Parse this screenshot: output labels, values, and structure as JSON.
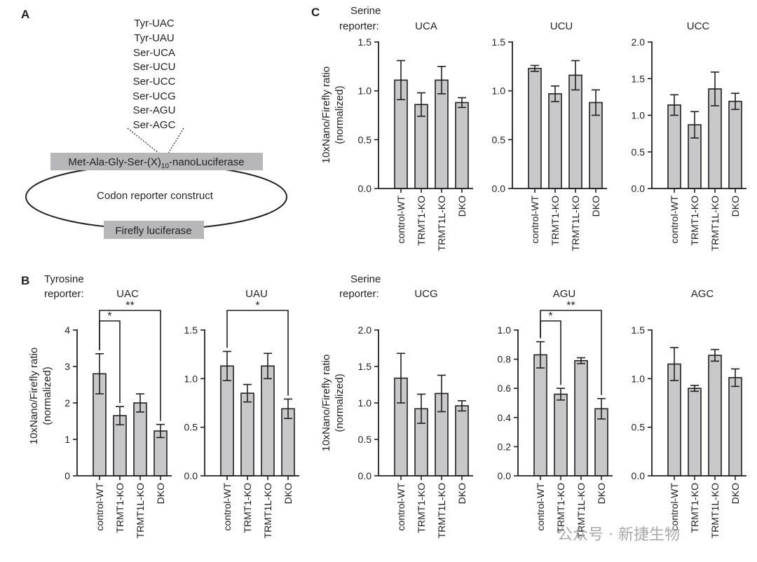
{
  "panel_a": {
    "letter": "A",
    "codons": [
      "Tyr-UAC",
      "Tyr-UAU",
      "Ser-UCA",
      "Ser-UCU",
      "Ser-UCC",
      "Ser-UCG",
      "Ser-AGU",
      "Ser-AGC"
    ],
    "construct_prefix": "Met-Ala-Gly-Ser-(X)",
    "construct_sub": "10",
    "construct_suffix": "-nanoLuciferase",
    "plasmid_label": "Codon reporter construct",
    "firefly_label": "Firefly luciferase"
  },
  "panel_b": {
    "letter": "B",
    "reporter_line1": "Tyrosine",
    "reporter_line2": "reporter:"
  },
  "panel_c": {
    "letter": "C",
    "reporter_line1": "Serine",
    "reporter_line2": "reporter:",
    "reporter_line1_b": "Serine",
    "reporter_line2_b": "reporter:"
  },
  "ylabel_line1": "10xNano/Firefly ratio",
  "ylabel_line2": "(normalized)",
  "watermark": "公众号 · 新捷生物",
  "colors": {
    "bar_fill": "#c8c8ca",
    "ink": "#231f20",
    "watermark": "#9a9a9a"
  },
  "chart_data": [
    {
      "type": "bar",
      "title": "UAC",
      "categories": [
        "control-WT",
        "TRMT1-KO",
        "TRMT1L-KO",
        "DKO"
      ],
      "values": [
        2.8,
        1.65,
        2.0,
        1.23
      ],
      "errors": [
        0.55,
        0.25,
        0.25,
        0.18
      ],
      "ylim": [
        0,
        4
      ],
      "yticks": [
        0,
        1,
        2,
        3,
        4
      ],
      "ytick_labels": [
        "0",
        "1",
        "2",
        "3",
        "4"
      ],
      "ylabel": "10xNano/Firefly ratio (normalized)",
      "brackets": [
        {
          "from": 0,
          "to": 1,
          "label": "*",
          "level": 1
        },
        {
          "from": 0,
          "to": 3,
          "label": "**",
          "level": 2
        }
      ]
    },
    {
      "type": "bar",
      "title": "UAU",
      "categories": [
        "control-WT",
        "TRMT1-KO",
        "TRMT1L-KO",
        "DKO"
      ],
      "values": [
        1.13,
        0.85,
        1.13,
        0.69
      ],
      "errors": [
        0.15,
        0.09,
        0.13,
        0.1
      ],
      "ylim": [
        0,
        1.5
      ],
      "yticks": [
        0,
        0.5,
        1.0,
        1.5
      ],
      "ytick_labels": [
        "0.0",
        "0.5",
        "1.0",
        "1.5"
      ],
      "ylabel": "",
      "brackets": [
        {
          "from": 0,
          "to": 3,
          "label": "*",
          "level": 2
        }
      ]
    },
    {
      "type": "bar",
      "title": "UCA",
      "categories": [
        "control-WT",
        "TRMT1-KO",
        "TRMT1L-KO",
        "DKO"
      ],
      "values": [
        1.11,
        0.86,
        1.11,
        0.88
      ],
      "errors": [
        0.2,
        0.12,
        0.14,
        0.05
      ],
      "ylim": [
        0,
        1.5
      ],
      "yticks": [
        0,
        0.5,
        1.0,
        1.5
      ],
      "ytick_labels": [
        "0.0",
        "0.5",
        "1.0",
        "1.5"
      ],
      "ylabel": "10xNano/Firefly ratio (normalized)",
      "brackets": []
    },
    {
      "type": "bar",
      "title": "UCU",
      "categories": [
        "control-WT",
        "TRMT1-KO",
        "TRMT1L-KO",
        "DKO"
      ],
      "values": [
        1.23,
        0.97,
        1.16,
        0.88
      ],
      "errors": [
        0.03,
        0.08,
        0.15,
        0.13
      ],
      "ylim": [
        0,
        1.5
      ],
      "yticks": [
        0,
        0.5,
        1.0,
        1.5
      ],
      "ytick_labels": [
        "0.0",
        "0.5",
        "1.0",
        "1.5"
      ],
      "ylabel": "",
      "brackets": []
    },
    {
      "type": "bar",
      "title": "UCC",
      "categories": [
        "control-WT",
        "TRMT1-KO",
        "TRMT1L-KO",
        "DKO"
      ],
      "values": [
        1.14,
        0.87,
        1.36,
        1.19
      ],
      "errors": [
        0.14,
        0.18,
        0.23,
        0.11
      ],
      "ylim": [
        0,
        2.0
      ],
      "yticks": [
        0,
        0.5,
        1.0,
        1.5,
        2.0
      ],
      "ytick_labels": [
        "0.0",
        "0.5",
        "1.0",
        "1.5",
        "2.0"
      ],
      "ylabel": "",
      "brackets": []
    },
    {
      "type": "bar",
      "title": "UCG",
      "categories": [
        "control-WT",
        "TRMT1-KO",
        "TRMT1L-KO",
        "DKO"
      ],
      "values": [
        1.34,
        0.92,
        1.13,
        0.96
      ],
      "errors": [
        0.34,
        0.2,
        0.25,
        0.07
      ],
      "ylim": [
        0,
        2.0
      ],
      "yticks": [
        0,
        0.5,
        1.0,
        1.5,
        2.0
      ],
      "ytick_labels": [
        "0.0",
        "0.5",
        "1.0",
        "1.5",
        "2.0"
      ],
      "ylabel": "10xNano/Firefly ratio (normalized)",
      "brackets": []
    },
    {
      "type": "bar",
      "title": "AGU",
      "categories": [
        "control-WT",
        "TRMT1-KO",
        "TRMT1L-KO",
        "DKO"
      ],
      "values": [
        0.83,
        0.56,
        0.79,
        0.46
      ],
      "errors": [
        0.09,
        0.04,
        0.02,
        0.07
      ],
      "ylim": [
        0,
        1.0
      ],
      "yticks": [
        0,
        0.2,
        0.4,
        0.6,
        0.8,
        1.0
      ],
      "ytick_labels": [
        "0.0",
        "0.2",
        "0.4",
        "0.6",
        "0.8",
        "1.0"
      ],
      "ylabel": "",
      "brackets": [
        {
          "from": 0,
          "to": 1,
          "label": "*",
          "level": 1
        },
        {
          "from": 0,
          "to": 3,
          "label": "**",
          "level": 2
        }
      ]
    },
    {
      "type": "bar",
      "title": "AGC",
      "categories": [
        "control-WT",
        "TRMT1-KO",
        "TRMT1L-KO",
        "DKO"
      ],
      "values": [
        1.15,
        0.9,
        1.24,
        1.01
      ],
      "errors": [
        0.17,
        0.03,
        0.06,
        0.09
      ],
      "ylim": [
        0,
        1.5
      ],
      "yticks": [
        0,
        0.5,
        1.0,
        1.5
      ],
      "ytick_labels": [
        "0.0",
        "0.5",
        "1.0",
        "1.5"
      ],
      "ylabel": "",
      "brackets": []
    }
  ]
}
